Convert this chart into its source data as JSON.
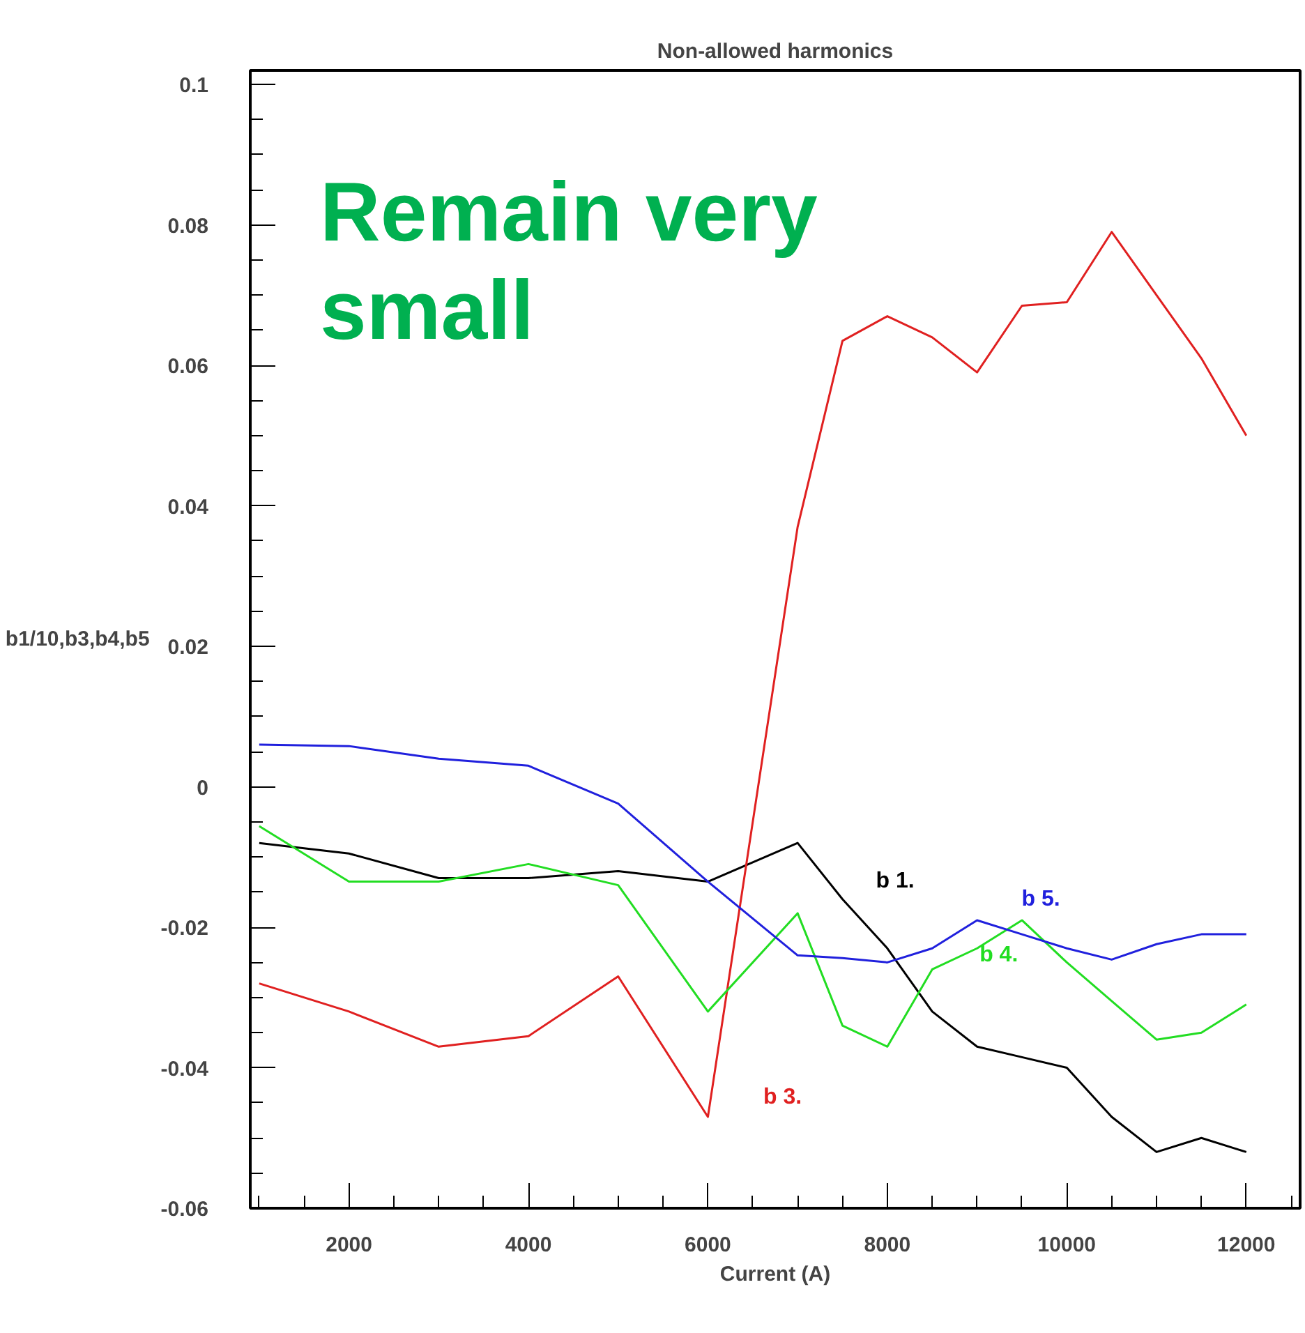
{
  "chart_data": {
    "type": "line",
    "title": "Non-allowed harmonics",
    "xlabel": "Current (A)",
    "ylabel": "b1/10,b3,b4,b5",
    "x": [
      1000,
      2000,
      3000,
      4000,
      5000,
      6000,
      7000,
      7500,
      8000,
      8500,
      9000,
      9500,
      10000,
      10500,
      11000,
      11500,
      12000
    ],
    "series": [
      {
        "name": "b   1.",
        "color": "#000000",
        "values": [
          -0.008,
          -0.0095,
          -0.013,
          -0.013,
          -0.012,
          -0.0135,
          -0.008,
          -0.016,
          -0.023,
          -0.032,
          -0.037,
          -0.0385,
          -0.04,
          -0.047,
          -0.052,
          -0.05,
          -0.052
        ]
      },
      {
        "name": "b   3.",
        "color": "#e02020",
        "values": [
          -0.028,
          -0.032,
          -0.037,
          -0.0355,
          -0.027,
          -0.047,
          0.037,
          0.0635,
          0.067,
          0.064,
          0.059,
          0.0685,
          0.069,
          0.079,
          0.07,
          0.061,
          0.05
        ]
      },
      {
        "name": "b   4.",
        "color": "#22dd22",
        "values": [
          -0.0056,
          -0.0135,
          -0.0135,
          -0.011,
          -0.014,
          -0.032,
          -0.018,
          -0.034,
          -0.037,
          -0.026,
          -0.023,
          -0.019,
          -0.025,
          -0.0305,
          -0.036,
          -0.035,
          -0.031
        ]
      },
      {
        "name": "b   5.",
        "color": "#2020dd",
        "values": [
          0.006,
          0.0058,
          0.004,
          0.003,
          -0.0024,
          -0.0135,
          -0.024,
          -0.0244,
          -0.025,
          -0.023,
          -0.019,
          -0.021,
          -0.023,
          -0.0246,
          -0.0224,
          -0.021,
          -0.021
        ]
      }
    ],
    "annotations": [
      "Remain very small"
    ],
    "xlim": [
      900,
      12600
    ],
    "ylim": [
      -0.06,
      0.102
    ],
    "xticks": [
      2000,
      4000,
      6000,
      8000,
      10000,
      12000
    ],
    "yticks": [
      {
        "value": 0.1,
        "label": "0.1"
      },
      {
        "value": 0.08,
        "label": "0.08"
      },
      {
        "value": 0.06,
        "label": "0.06"
      },
      {
        "value": 0.04,
        "label": "0.04"
      },
      {
        "value": 0.02,
        "label": "0.02"
      },
      {
        "value": 0,
        "label": "0"
      },
      {
        "value": -0.02,
        "label": "-0.02"
      },
      {
        "value": -0.04,
        "label": "-0.04"
      },
      {
        "value": -0.06,
        "label": "-0.06"
      }
    ],
    "grid": false,
    "marker": "none",
    "line_style": "solid"
  }
}
